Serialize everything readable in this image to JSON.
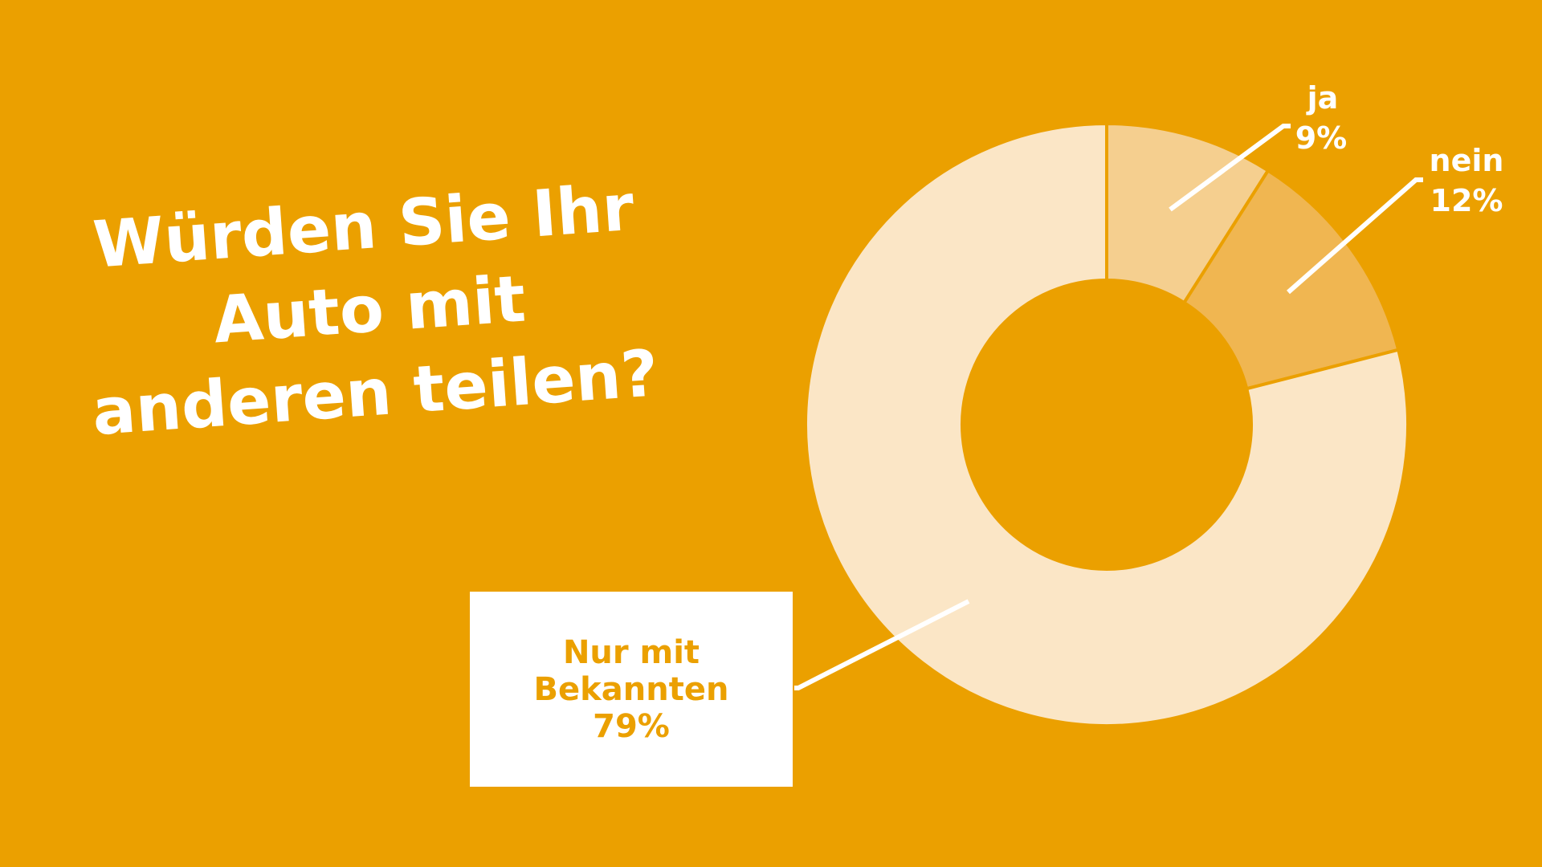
{
  "chart_data": {
    "type": "donut",
    "title": "Würden Sie Ihr Auto mit anderen teilen?",
    "categories": [
      "ja",
      "nein",
      "Nur mit Bekannten"
    ],
    "values": [
      9,
      12,
      79
    ],
    "value_labels": [
      "9%",
      "12%",
      "79%"
    ],
    "colors": [
      "#f5cf8f",
      "#f0b651",
      "#fbe6c6"
    ]
  }
}
